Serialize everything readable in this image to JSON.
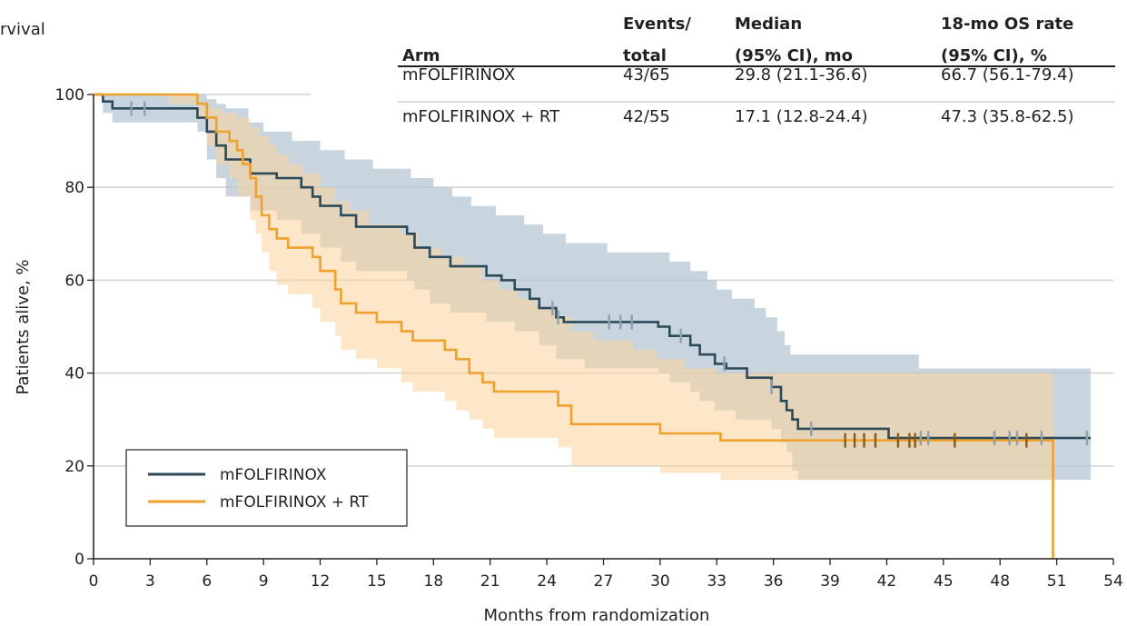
{
  "panel_label": "rvival",
  "colors": {
    "series1_line": "#2b4a5a",
    "series1_band": "#b3c5d3",
    "series1_censor": "#8ea1ad",
    "series2_line": "#f0a12b",
    "series2_band": "#fbd49b",
    "series2_censor": "#8a5a16",
    "grid": "#d3d3d3"
  },
  "table": {
    "headers": [
      [
        "Arm"
      ],
      [
        "Events/",
        "total"
      ],
      [
        "Median",
        "(95% CI), mo"
      ],
      [
        "18-mo OS rate",
        "(95% CI), %"
      ]
    ],
    "rows": [
      [
        "mFOLFIRINOX",
        "43/65",
        "29.8 (21.1-36.6)",
        "66.7 (56.1-79.4)"
      ],
      [
        "mFOLFIRINOX + RT",
        "42/55",
        "17.1 (12.8-24.4)",
        "47.3 (35.8-62.5)"
      ]
    ]
  },
  "chart_data": {
    "type": "line",
    "xlabel": "Months from randomization",
    "ylabel": "Patients alive, %",
    "xlim": [
      0,
      54
    ],
    "ylim": [
      0,
      100
    ],
    "xticks": [
      0,
      3,
      6,
      9,
      12,
      15,
      18,
      21,
      24,
      27,
      30,
      33,
      36,
      39,
      42,
      45,
      48,
      51,
      54
    ],
    "yticks": [
      0,
      20,
      40,
      60,
      80,
      100
    ],
    "grid": "horizontal",
    "legend": {
      "position": "bottom-left",
      "entries": [
        "mFOLFIRINOX",
        "mFOLFIRINOX + RT"
      ]
    },
    "series": [
      {
        "name": "mFOLFIRINOX",
        "step_points": [
          [
            0,
            100
          ],
          [
            0.5,
            98.5
          ],
          [
            1,
            97
          ],
          [
            5.5,
            95
          ],
          [
            6,
            92
          ],
          [
            6.5,
            89
          ],
          [
            7,
            86
          ],
          [
            8.3,
            83
          ],
          [
            9.7,
            82
          ],
          [
            11,
            80
          ],
          [
            11.6,
            78
          ],
          [
            12,
            76
          ],
          [
            13.1,
            74
          ],
          [
            13.9,
            71.5
          ],
          [
            16.6,
            70
          ],
          [
            17,
            67
          ],
          [
            17.8,
            65
          ],
          [
            18.9,
            63
          ],
          [
            20.8,
            61
          ],
          [
            21.6,
            60
          ],
          [
            22.3,
            58
          ],
          [
            23.1,
            56
          ],
          [
            23.6,
            54
          ],
          [
            24.5,
            52
          ],
          [
            24.9,
            51
          ],
          [
            29.9,
            50
          ],
          [
            30.5,
            48
          ],
          [
            31.6,
            46
          ],
          [
            32.1,
            44
          ],
          [
            32.9,
            42
          ],
          [
            33.5,
            41
          ],
          [
            34.6,
            39
          ],
          [
            35.9,
            37
          ],
          [
            36.4,
            34
          ],
          [
            36.7,
            32
          ],
          [
            37,
            30
          ],
          [
            37.3,
            28
          ],
          [
            42.1,
            26
          ],
          [
            52.8,
            26
          ]
        ],
        "ci_upper": [
          [
            0,
            100
          ],
          [
            5.5,
            100
          ],
          [
            6,
            99
          ],
          [
            6.5,
            98
          ],
          [
            7,
            97
          ],
          [
            8.2,
            94
          ],
          [
            9,
            92
          ],
          [
            10.5,
            90
          ],
          [
            12,
            88
          ],
          [
            13.3,
            86
          ],
          [
            14.8,
            84
          ],
          [
            16.8,
            82
          ],
          [
            18,
            80
          ],
          [
            19,
            78
          ],
          [
            20,
            76
          ],
          [
            21.3,
            74
          ],
          [
            22.8,
            72
          ],
          [
            23.8,
            70
          ],
          [
            25,
            68
          ],
          [
            27.2,
            66
          ],
          [
            30.5,
            64
          ],
          [
            31.6,
            62
          ],
          [
            32.5,
            60
          ],
          [
            33,
            58
          ],
          [
            33.8,
            56
          ],
          [
            35,
            54
          ],
          [
            35.6,
            52
          ],
          [
            36.2,
            49
          ],
          [
            36.6,
            46
          ],
          [
            36.9,
            44
          ],
          [
            43.7,
            41
          ],
          [
            52.8,
            41
          ]
        ],
        "ci_lower": [
          [
            0,
            100
          ],
          [
            0.5,
            96
          ],
          [
            1,
            94
          ],
          [
            5.5,
            92
          ],
          [
            6,
            86
          ],
          [
            6.5,
            82
          ],
          [
            7,
            78
          ],
          [
            8.3,
            75
          ],
          [
            9.7,
            73
          ],
          [
            11,
            70
          ],
          [
            12,
            67
          ],
          [
            13.1,
            64
          ],
          [
            13.9,
            62
          ],
          [
            16.6,
            60
          ],
          [
            17,
            58
          ],
          [
            17.8,
            55
          ],
          [
            18.9,
            53
          ],
          [
            20.8,
            51
          ],
          [
            22.3,
            49
          ],
          [
            23.6,
            46
          ],
          [
            24.5,
            43
          ],
          [
            26,
            41
          ],
          [
            29.9,
            40
          ],
          [
            30.5,
            38
          ],
          [
            31.6,
            36
          ],
          [
            32.1,
            34
          ],
          [
            32.9,
            32
          ],
          [
            34,
            30
          ],
          [
            35.9,
            28
          ],
          [
            36.4,
            25
          ],
          [
            36.7,
            23
          ],
          [
            37,
            19
          ],
          [
            37.3,
            17
          ],
          [
            52.8,
            16
          ]
        ],
        "censor": [
          2,
          2.7,
          24.3,
          24.6,
          27.3,
          27.9,
          28.5,
          31.1,
          33.4,
          35.9,
          38,
          43.8,
          44.2,
          47.7,
          48.5,
          48.9,
          50.2,
          52.6
        ]
      },
      {
        "name": "mFOLFIRINOX + RT",
        "step_points": [
          [
            0,
            100
          ],
          [
            3.5,
            100
          ],
          [
            5.5,
            98
          ],
          [
            6,
            95
          ],
          [
            6.5,
            92
          ],
          [
            7.2,
            90
          ],
          [
            7.6,
            88
          ],
          [
            7.9,
            85
          ],
          [
            8.3,
            82
          ],
          [
            8.6,
            78
          ],
          [
            8.9,
            74
          ],
          [
            9.3,
            71
          ],
          [
            9.7,
            69
          ],
          [
            10.3,
            67
          ],
          [
            11.6,
            65
          ],
          [
            12,
            62
          ],
          [
            12.8,
            58
          ],
          [
            13.1,
            55
          ],
          [
            13.9,
            53
          ],
          [
            15,
            51
          ],
          [
            16.3,
            49
          ],
          [
            16.9,
            47
          ],
          [
            18.6,
            45
          ],
          [
            19.2,
            43
          ],
          [
            19.9,
            40
          ],
          [
            20.6,
            38
          ],
          [
            21.2,
            36
          ],
          [
            24.6,
            33
          ],
          [
            25.3,
            29
          ],
          [
            30,
            27
          ],
          [
            33.2,
            25.5
          ],
          [
            50.8,
            25.5
          ],
          [
            50.8,
            0
          ]
        ],
        "ci_upper": [
          [
            0,
            100
          ],
          [
            4,
            98
          ],
          [
            5.8,
            97
          ],
          [
            6.8,
            96
          ],
          [
            7.6,
            95
          ],
          [
            8.3,
            93
          ],
          [
            8.8,
            91
          ],
          [
            9.3,
            89
          ],
          [
            9.7,
            87
          ],
          [
            10.3,
            85
          ],
          [
            11.1,
            83
          ],
          [
            12,
            80
          ],
          [
            12.8,
            77
          ],
          [
            13.6,
            75
          ],
          [
            14.6,
            72
          ],
          [
            16.3,
            70
          ],
          [
            17.2,
            67
          ],
          [
            18.4,
            65
          ],
          [
            19.6,
            63
          ],
          [
            20.6,
            60
          ],
          [
            21.5,
            58
          ],
          [
            22.5,
            56
          ],
          [
            23.5,
            54
          ],
          [
            24.5,
            52
          ],
          [
            25.3,
            49
          ],
          [
            26.5,
            47
          ],
          [
            28.6,
            45
          ],
          [
            29.8,
            43
          ],
          [
            31.3,
            41
          ],
          [
            33,
            40
          ],
          [
            50.8,
            40
          ]
        ],
        "ci_lower": [
          [
            0,
            100
          ],
          [
            5.5,
            95
          ],
          [
            6,
            89
          ],
          [
            6.5,
            85
          ],
          [
            7.2,
            82
          ],
          [
            7.6,
            78
          ],
          [
            8.3,
            73
          ],
          [
            8.6,
            70
          ],
          [
            8.9,
            66
          ],
          [
            9.3,
            62
          ],
          [
            9.7,
            59
          ],
          [
            10.3,
            57
          ],
          [
            11.6,
            54
          ],
          [
            12,
            51
          ],
          [
            12.8,
            48
          ],
          [
            13.1,
            45
          ],
          [
            13.9,
            43
          ],
          [
            15,
            41
          ],
          [
            16.3,
            38
          ],
          [
            16.9,
            36
          ],
          [
            18.6,
            34
          ],
          [
            19.2,
            32
          ],
          [
            19.9,
            30
          ],
          [
            20.6,
            28
          ],
          [
            21.2,
            26
          ],
          [
            24.6,
            24
          ],
          [
            25.3,
            20
          ],
          [
            30,
            18.5
          ],
          [
            33.2,
            17
          ],
          [
            50.8,
            17
          ]
        ],
        "censor": [
          39.8,
          40.3,
          40.8,
          41.4,
          42.6,
          43.2,
          43.5,
          45.6,
          49.4
        ]
      }
    ]
  }
}
